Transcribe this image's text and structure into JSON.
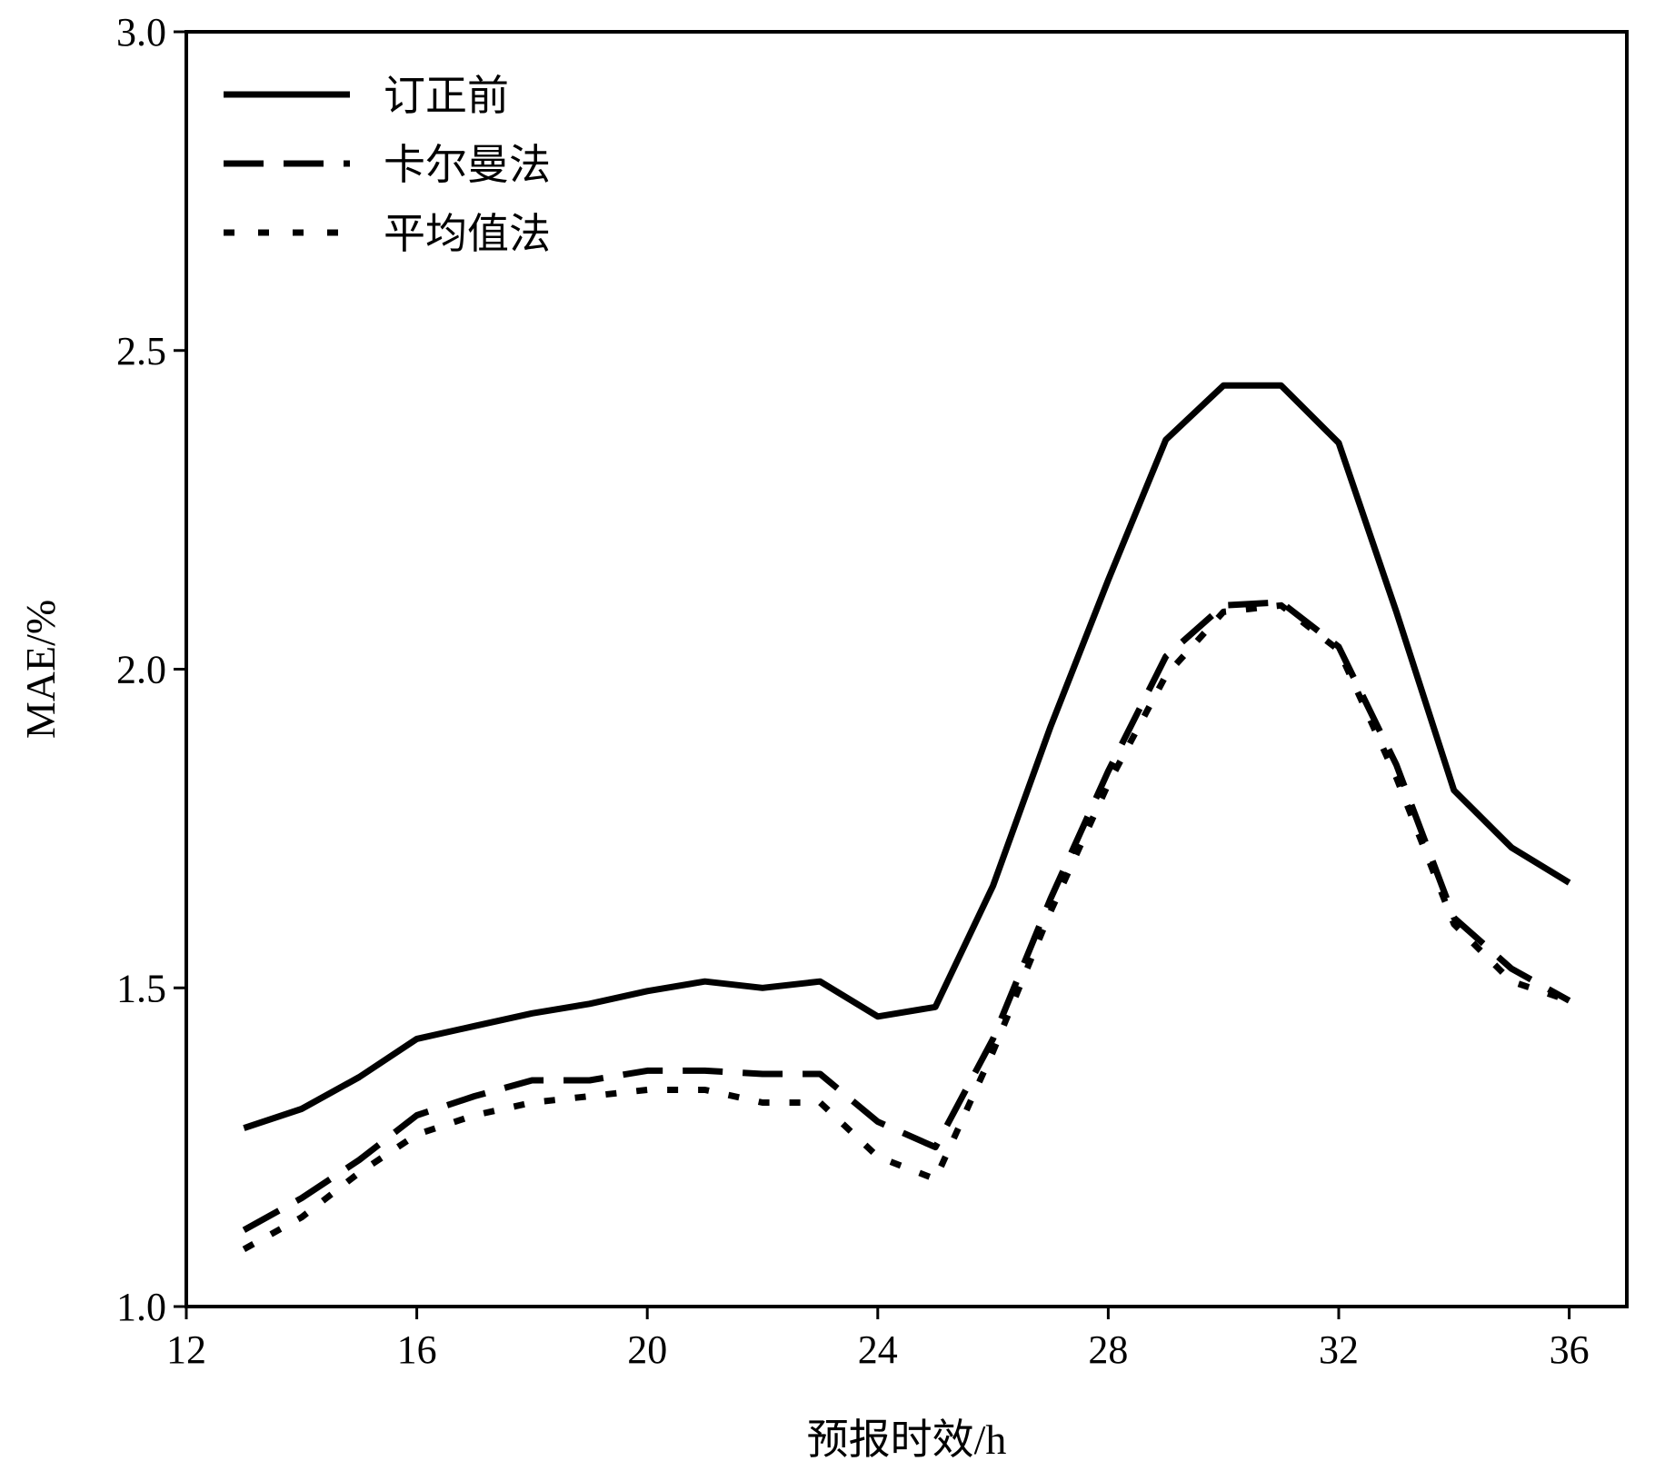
{
  "chart_data": {
    "type": "line",
    "title": "",
    "xlabel": "预报时效/h",
    "ylabel": "MAE/%",
    "xlim": [
      12,
      37
    ],
    "ylim": [
      1.0,
      3.0
    ],
    "xticks": [
      12,
      16,
      20,
      24,
      28,
      32,
      36
    ],
    "xtick_labels": [
      "12",
      "16",
      "20",
      "24",
      "28",
      "32",
      "36"
    ],
    "yticks": [
      1.0,
      1.5,
      2.0,
      2.5,
      3.0
    ],
    "ytick_labels": [
      "1.0",
      "1.5",
      "2.0",
      "2.5",
      "3.0"
    ],
    "grid": false,
    "legend_position": "top-left",
    "x": [
      13,
      14,
      15,
      16,
      17,
      18,
      19,
      20,
      21,
      22,
      23,
      24,
      25,
      26,
      27,
      28,
      29,
      30,
      31,
      32,
      33,
      34,
      35,
      36
    ],
    "series": [
      {
        "name": "订正前",
        "style": "solid",
        "color": "#000000",
        "values": [
          1.28,
          1.31,
          1.36,
          1.42,
          1.44,
          1.46,
          1.475,
          1.495,
          1.51,
          1.5,
          1.51,
          1.455,
          1.47,
          1.66,
          1.91,
          2.14,
          2.36,
          2.445,
          2.445,
          2.355,
          2.09,
          1.81,
          1.72,
          1.665
        ]
      },
      {
        "name": "卡尔曼法",
        "style": "dashed",
        "color": "#000000",
        "values": [
          1.12,
          1.17,
          1.23,
          1.3,
          1.33,
          1.355,
          1.355,
          1.37,
          1.37,
          1.365,
          1.365,
          1.29,
          1.25,
          1.42,
          1.64,
          1.84,
          2.02,
          2.1,
          2.105,
          2.035,
          1.85,
          1.61,
          1.53,
          1.48
        ]
      },
      {
        "name": "平均值法",
        "style": "dotted",
        "color": "#000000",
        "values": [
          1.09,
          1.14,
          1.21,
          1.27,
          1.3,
          1.32,
          1.33,
          1.34,
          1.34,
          1.32,
          1.32,
          1.235,
          1.2,
          1.4,
          1.62,
          1.82,
          1.99,
          2.09,
          2.1,
          2.03,
          1.83,
          1.6,
          1.51,
          1.48
        ]
      }
    ]
  }
}
